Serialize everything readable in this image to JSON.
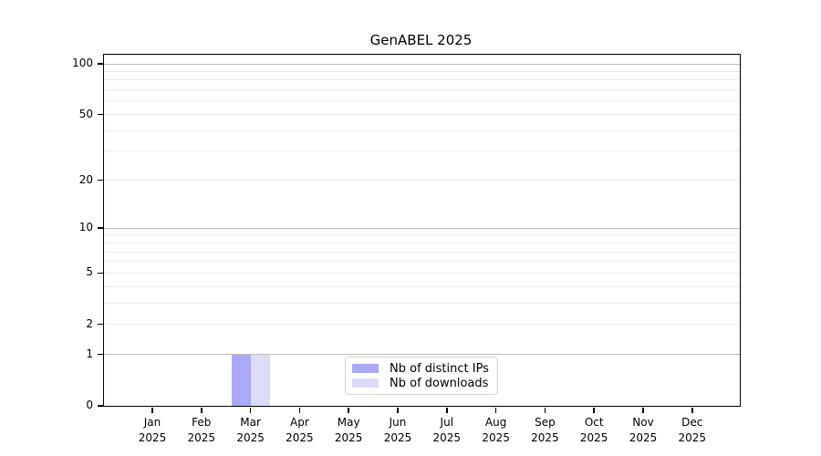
{
  "title": "GenABEL 2025",
  "chart_data": {
    "type": "bar",
    "title": "GenABEL 2025",
    "categories": [
      "Jan",
      "Feb",
      "Mar",
      "Apr",
      "May",
      "Jun",
      "Jul",
      "Aug",
      "Sep",
      "Oct",
      "Nov",
      "Dec"
    ],
    "category_year": "2025",
    "series": [
      {
        "name": "Nb of distinct IPs",
        "color": "#a9a9f5",
        "values": [
          0,
          0,
          1,
          0,
          0,
          0,
          0,
          0,
          0,
          0,
          0,
          0
        ]
      },
      {
        "name": "Nb of downloads",
        "color": "#dcdcf8",
        "values": [
          0,
          0,
          1,
          0,
          0,
          0,
          0,
          0,
          0,
          0,
          0,
          0
        ]
      }
    ],
    "xlabel": "",
    "ylabel": "",
    "yscale": "log1p",
    "ylim": [
      0,
      100
    ],
    "y_ticks": [
      0,
      1,
      2,
      5,
      10,
      20,
      50,
      100
    ],
    "major_gridlines": [
      1,
      10,
      100
    ],
    "minor_gridlines": [
      2,
      3,
      4,
      5,
      6,
      7,
      8,
      9,
      20,
      30,
      40,
      50,
      60,
      70,
      80,
      90
    ],
    "grid": true,
    "legend_position": "bottom-center"
  },
  "colors": {
    "major_grid": "#bdbdbd",
    "minor_grid": "#ededed",
    "axis": "#000000",
    "legend_border": "#d5d5d5",
    "background": "#ffffff"
  }
}
